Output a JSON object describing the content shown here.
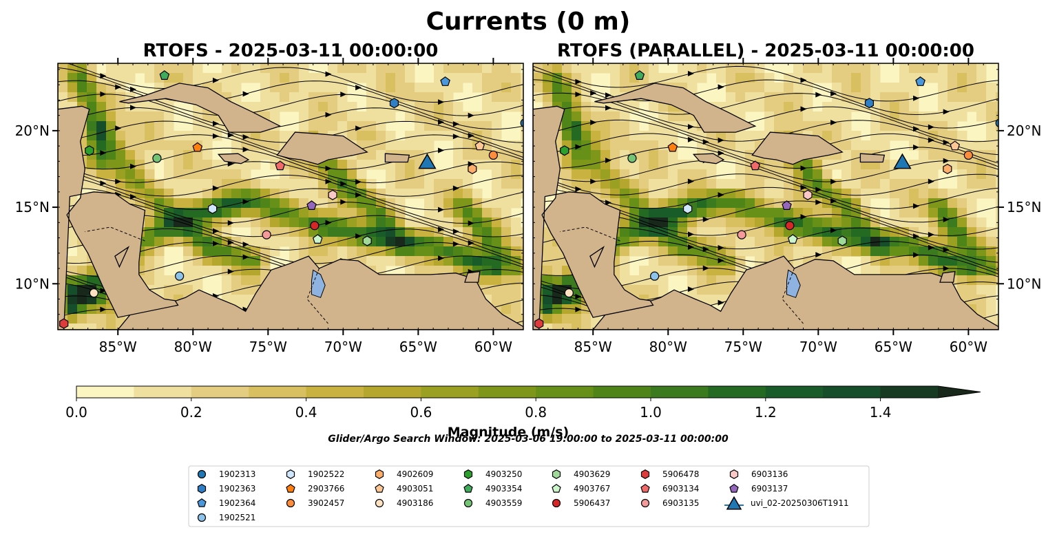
{
  "figure": {
    "title": "Currents (0 m)",
    "search_window": "Glider/Argo Search Window: 2025-03-06 19:00:00 to 2025-03-11 00:00:00"
  },
  "chart_data": [
    {
      "type": "heatmap",
      "title": "RTOFS - 2025-03-11 00:00:00",
      "xlim": [
        -89,
        -58
      ],
      "ylim": [
        7,
        24.4
      ],
      "x_ticks": [
        "85°W",
        "80°W",
        "75°W",
        "70°W",
        "65°W",
        "60°W"
      ],
      "x_tick_values": [
        -85,
        -80,
        -75,
        -70,
        -65,
        -60
      ],
      "y_ticks": [
        "10°N",
        "15°N",
        "20°N"
      ],
      "y_tick_values": [
        10,
        15,
        20
      ],
      "y_ticks_side": "left",
      "overlay": "streamlines"
    },
    {
      "type": "heatmap",
      "title": "RTOFS (PARALLEL) - 2025-03-11 00:00:00",
      "xlim": [
        -89,
        -58
      ],
      "ylim": [
        7,
        24.4
      ],
      "x_ticks": [
        "85°W",
        "80°W",
        "75°W",
        "70°W",
        "65°W",
        "60°W"
      ],
      "x_tick_values": [
        -85,
        -80,
        -75,
        -70,
        -65,
        -60
      ],
      "y_ticks": [
        "10°N",
        "15°N",
        "20°N"
      ],
      "y_tick_values": [
        10,
        15,
        20
      ],
      "y_ticks_side": "right",
      "overlay": "streamlines"
    }
  ],
  "colorbar": {
    "label": "Magnitude (m/s)",
    "range": [
      0,
      1.5
    ],
    "extend": "max",
    "ticks": [
      "0.0",
      "0.2",
      "0.4",
      "0.6",
      "0.8",
      "1.0",
      "1.2",
      "1.4"
    ],
    "tick_values": [
      0,
      0.2,
      0.4,
      0.6,
      0.8,
      1.0,
      1.2,
      1.4
    ],
    "levels": 15,
    "colors": [
      "#fbf5c2",
      "#efe0a0",
      "#e4cd80",
      "#d8bf60",
      "#c9b240",
      "#b5a62d",
      "#9aa022",
      "#7e961a",
      "#669018",
      "#4f8418",
      "#3b7a1e",
      "#256a22",
      "#195c2a",
      "#164d2a",
      "#163a22",
      "#18281a"
    ],
    "land_color": "#d2b48c"
  },
  "legend": {
    "entries": [
      {
        "label": "1902313",
        "color": "#1f77b4",
        "marker": "circle"
      },
      {
        "label": "1902363",
        "color": "#2f7fc7",
        "marker": "hexagon"
      },
      {
        "label": "1902364",
        "color": "#4a98db",
        "marker": "pentagon"
      },
      {
        "label": "1902521",
        "color": "#8dc3ea",
        "marker": "circle"
      },
      {
        "label": "1902522",
        "color": "#cfe8ff",
        "marker": "hexagon"
      },
      {
        "label": "2903766",
        "color": "#ff7f0e",
        "marker": "pentagon"
      },
      {
        "label": "3902457",
        "color": "#fd8d3c",
        "marker": "circle"
      },
      {
        "label": "4902609",
        "color": "#fdae6b",
        "marker": "hexagon"
      },
      {
        "label": "4903051",
        "color": "#fdc795",
        "marker": "pentagon"
      },
      {
        "label": "4903186",
        "color": "#fee2c2",
        "marker": "circle"
      },
      {
        "label": "4903250",
        "color": "#2ca02c",
        "marker": "hexagon"
      },
      {
        "label": "4903354",
        "color": "#41ab5d",
        "marker": "pentagon"
      },
      {
        "label": "4903559",
        "color": "#74c476",
        "marker": "circle"
      },
      {
        "label": "4903629",
        "color": "#a1d99b",
        "marker": "hexagon"
      },
      {
        "label": "4903767",
        "color": "#ccf5cc",
        "marker": "pentagon"
      },
      {
        "label": "5906437",
        "color": "#d62728",
        "marker": "circle"
      },
      {
        "label": "5906478",
        "color": "#de3c3c",
        "marker": "hexagon"
      },
      {
        "label": "6903134",
        "color": "#f06a6a",
        "marker": "pentagon"
      },
      {
        "label": "6903135",
        "color": "#f49a9a",
        "marker": "circle"
      },
      {
        "label": "6903136",
        "color": "#fbc8c8",
        "marker": "hexagon"
      },
      {
        "label": "6903137",
        "color": "#9467bd",
        "marker": "pentagon"
      },
      {
        "label": "uvi_02-20250306T1911",
        "color": "#1f77b4",
        "marker": "triangle"
      }
    ]
  },
  "floats": [
    {
      "id": "1902313",
      "lon": -57.9,
      "lat": 20.5
    },
    {
      "id": "1902363",
      "lon": -66.6,
      "lat": 21.8
    },
    {
      "id": "1902364",
      "lon": -63.2,
      "lat": 23.2
    },
    {
      "id": "1902521",
      "lon": -80.9,
      "lat": 10.5
    },
    {
      "id": "1902522",
      "lon": -78.7,
      "lat": 14.9
    },
    {
      "id": "2903766",
      "lon": -79.7,
      "lat": 18.9
    },
    {
      "id": "3902457",
      "lon": -60.0,
      "lat": 18.4
    },
    {
      "id": "4902609",
      "lon": -61.4,
      "lat": 17.5
    },
    {
      "id": "4903051",
      "lon": -60.9,
      "lat": 19.0
    },
    {
      "id": "4903186",
      "lon": -86.6,
      "lat": 9.4
    },
    {
      "id": "4903250",
      "lon": -86.9,
      "lat": 18.7
    },
    {
      "id": "4903354",
      "lon": -81.9,
      "lat": 23.6
    },
    {
      "id": "4903559",
      "lon": -82.4,
      "lat": 18.2
    },
    {
      "id": "4903629",
      "lon": -68.4,
      "lat": 12.8
    },
    {
      "id": "4903767",
      "lon": -71.7,
      "lat": 12.9
    },
    {
      "id": "5906437",
      "lon": -71.9,
      "lat": 13.8
    },
    {
      "id": "5906478",
      "lon": -88.6,
      "lat": 7.4
    },
    {
      "id": "6903134",
      "lon": -74.2,
      "lat": 17.7
    },
    {
      "id": "6903135",
      "lon": -75.1,
      "lat": 13.2
    },
    {
      "id": "6903136",
      "lon": -70.7,
      "lat": 15.8
    },
    {
      "id": "6903137",
      "lon": -72.1,
      "lat": 15.1
    },
    {
      "id": "uvi_02-20250306T1911",
      "lon": -64.4,
      "lat": 18.0
    }
  ]
}
